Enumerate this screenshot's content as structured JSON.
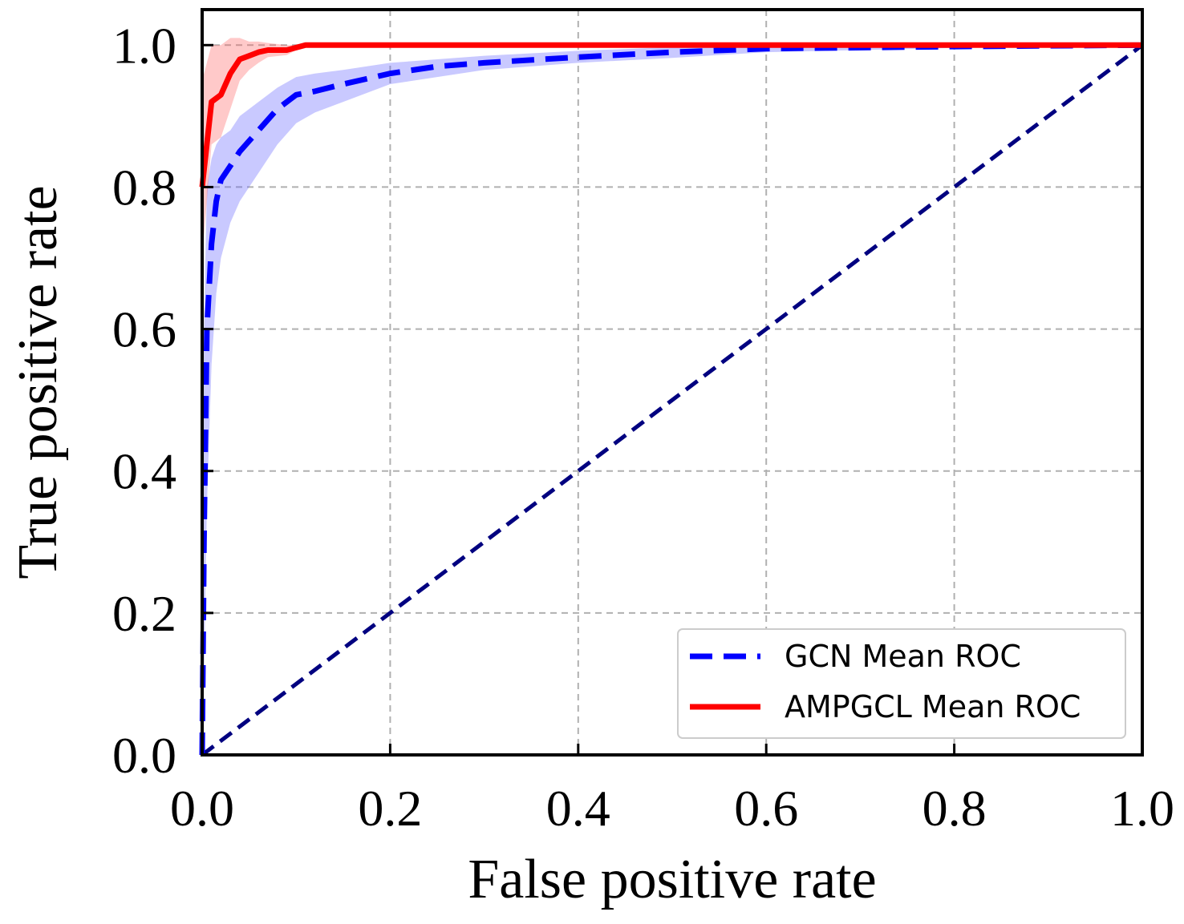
{
  "chart_data": {
    "type": "line",
    "title": "",
    "xlabel": "False positive rate",
    "ylabel": "True positive rate",
    "xlim": [
      0.0,
      1.0
    ],
    "ylim": [
      0.0,
      1.05
    ],
    "xticks": [
      0.0,
      0.2,
      0.4,
      0.6,
      0.8,
      1.0
    ],
    "yticks": [
      0.0,
      0.2,
      0.4,
      0.6,
      0.8,
      1.0
    ],
    "xtick_labels": [
      "0.0",
      "0.2",
      "0.4",
      "0.6",
      "0.8",
      "1.0"
    ],
    "ytick_labels": [
      "0.0",
      "0.2",
      "0.4",
      "0.6",
      "0.8",
      "1.0"
    ],
    "grid": true,
    "legend_position": "lower-right",
    "series": [
      {
        "name": "GCN Mean ROC",
        "color": "#0000ff",
        "style": "dashed",
        "x": [
          0.0,
          0.002,
          0.005,
          0.01,
          0.015,
          0.02,
          0.03,
          0.04,
          0.06,
          0.08,
          0.1,
          0.12,
          0.15,
          0.2,
          0.25,
          0.3,
          0.4,
          0.5,
          0.6,
          0.8,
          1.0
        ],
        "y": [
          0.0,
          0.3,
          0.6,
          0.72,
          0.78,
          0.81,
          0.83,
          0.85,
          0.88,
          0.91,
          0.93,
          0.935,
          0.945,
          0.96,
          0.97,
          0.975,
          0.983,
          0.99,
          0.995,
          0.998,
          1.0
        ],
        "upper": [
          0.2,
          0.6,
          0.8,
          0.84,
          0.86,
          0.87,
          0.88,
          0.9,
          0.92,
          0.94,
          0.955,
          0.96,
          0.965,
          0.975,
          0.98,
          0.985,
          0.992,
          0.997,
          1.0,
          1.0,
          1.0
        ],
        "lower": [
          0.0,
          0.1,
          0.35,
          0.55,
          0.65,
          0.7,
          0.75,
          0.78,
          0.82,
          0.86,
          0.89,
          0.905,
          0.92,
          0.945,
          0.955,
          0.965,
          0.975,
          0.982,
          0.99,
          0.996,
          1.0
        ]
      },
      {
        "name": "AMPGCL Mean ROC",
        "color": "#ff0000",
        "style": "solid",
        "x": [
          0.0,
          0.01,
          0.02,
          0.03,
          0.04,
          0.05,
          0.06,
          0.07,
          0.09,
          0.11,
          0.2,
          0.4,
          0.6,
          0.8,
          1.0
        ],
        "y": [
          0.8,
          0.92,
          0.93,
          0.96,
          0.98,
          0.985,
          0.99,
          0.993,
          0.993,
          1.0,
          1.0,
          1.0,
          1.0,
          1.0,
          1.0
        ],
        "upper": [
          0.95,
          1.0,
          1.0,
          1.01,
          1.01,
          1.005,
          1.005,
          1.003,
          1.0,
          1.0,
          1.0,
          1.0,
          1.0,
          1.0,
          1.0
        ],
        "lower": [
          0.7,
          0.86,
          0.87,
          0.91,
          0.95,
          0.965,
          0.975,
          0.983,
          0.986,
          1.0,
          1.0,
          1.0,
          1.0,
          1.0,
          1.0
        ]
      },
      {
        "name": "",
        "color": "#000080",
        "style": "dashed",
        "x": [
          0.0,
          1.0
        ],
        "y": [
          0.0,
          1.0
        ]
      }
    ]
  }
}
